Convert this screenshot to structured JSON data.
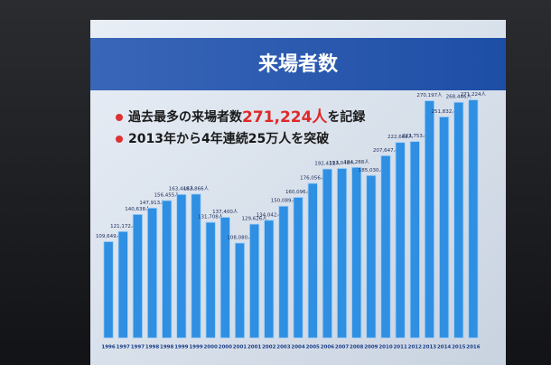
{
  "chart_data": {
    "type": "bar",
    "title": "来場者数",
    "bullets": [
      [
        "過去最多の来場者数",
        "271,224人",
        "を記録"
      ],
      [
        "2013年から4年連続25万人を突破"
      ]
    ],
    "categories": [
      "1996",
      "1997",
      "1997",
      "1998",
      "1998",
      "1999",
      "1999",
      "2000",
      "2000",
      "2001",
      "2001",
      "2002",
      "2003",
      "2004",
      "2005",
      "2006",
      "2007",
      "2008",
      "2009",
      "2010",
      "2011",
      "2012",
      "2013",
      "2014",
      "2015",
      "2016"
    ],
    "values": [
      109649,
      121172,
      140638,
      147913,
      156455,
      163448,
      163866,
      131708,
      137400,
      108080,
      129626,
      134042,
      150089,
      160096,
      176056,
      192411,
      193040,
      194288,
      185030,
      207647,
      222668,
      223753,
      270197,
      251832,
      268446,
      271224
    ],
    "value_labels": [
      "109,649人",
      "121,172人",
      "140,638人",
      "147,913人",
      "156,455人",
      "163,448人",
      "163,866人",
      "131,708人",
      "137,400人",
      "108,080人",
      "129,626人",
      "134,042人",
      "150,089人",
      "160,096人",
      "176,056人",
      "192,411人",
      "193,040人",
      "194,288人",
      "185,030人",
      "207,647人",
      "222,668人",
      "223,753人",
      "270,197人",
      "251,832人",
      "268,446人",
      "271,224人"
    ],
    "color": "#2f8fe2"
  }
}
